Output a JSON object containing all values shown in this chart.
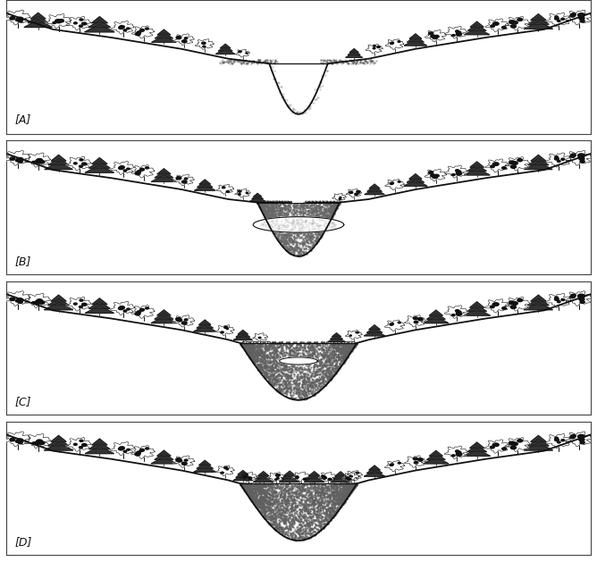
{
  "panels": [
    "A",
    "B",
    "C",
    "D"
  ],
  "bg_color": "#ffffff",
  "line_color": "#111111",
  "dot_color": "#777777",
  "border_color": "#555555",
  "fig_width": 6.68,
  "fig_height": 6.29
}
